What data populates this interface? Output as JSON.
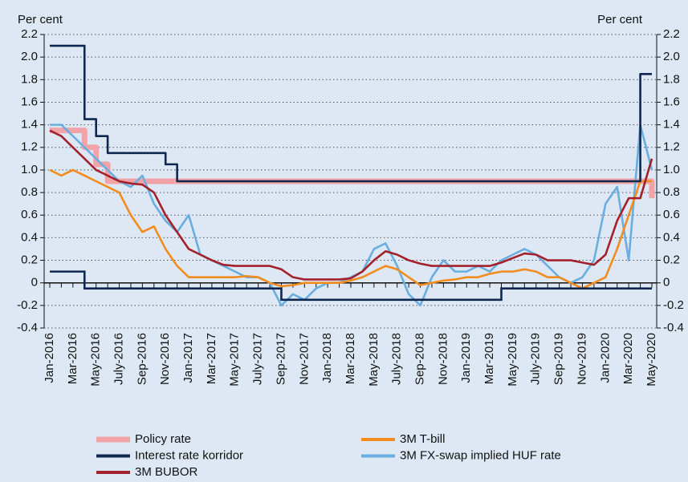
{
  "chart_data": {
    "type": "line",
    "ylabel": "Per cent",
    "y2label": "Per cent",
    "categories": [
      "Jan-2016",
      null,
      "Mar-2016",
      null,
      "May-2016",
      null,
      "July-2016",
      null,
      "Sep-2016",
      null,
      "Nov-2016",
      null,
      "Jan-2017",
      null,
      "Mar-2017",
      null,
      "May-2017",
      null,
      "July-2017",
      null,
      "Sep-2017",
      null,
      "Nov-2017",
      null,
      "Jan-2018",
      null,
      "Mar-2018",
      null,
      "May-2018",
      null,
      "July-2018",
      null,
      "Sep-2018",
      null,
      "Nov-2018",
      null,
      "Jan-2019",
      null,
      "Mar-2019",
      null,
      "May-2019",
      null,
      "July-2019",
      null,
      "Sep-2019",
      null,
      "Nov-2019",
      null,
      "Jan-2020",
      null,
      "Mar-2020",
      null,
      "May-2020"
    ],
    "ylim": [
      -0.4,
      2.2
    ],
    "yticks": [
      -0.4,
      -0.2,
      0,
      0.2,
      0.4,
      0.6,
      0.8,
      {
        "value": 1,
        "label": "1.0"
      },
      1.2,
      1.4,
      1.6,
      1.8,
      {
        "value": 2,
        "label": "2.0"
      },
      2.2
    ],
    "y2lim": [
      -0.4,
      2.2
    ],
    "y2ticks": [
      -0.4,
      -0.2,
      0,
      0.2,
      0.4,
      0.6,
      0.8,
      {
        "value": 1,
        "label": "1.0"
      },
      1.2,
      1.4,
      1.6,
      1.8,
      {
        "value": 2,
        "label": "2.0"
      },
      2.2
    ],
    "grid": true,
    "series": [
      {
        "name": "Policy rate",
        "color": "#f2a3a8",
        "values": [
          1.35,
          1.35,
          1.35,
          1.2,
          1.05,
          0.9,
          0.9,
          0.9,
          0.9,
          0.9,
          0.9,
          0.9,
          0.9,
          0.9,
          0.9,
          0.9,
          0.9,
          0.9,
          0.9,
          0.9,
          0.9,
          0.9,
          0.9,
          0.9,
          0.9,
          0.9,
          0.9,
          0.9,
          0.9,
          0.9,
          0.9,
          0.9,
          0.9,
          0.9,
          0.9,
          0.9,
          0.9,
          0.9,
          0.9,
          0.9,
          0.9,
          0.9,
          0.9,
          0.9,
          0.9,
          0.9,
          0.9,
          0.9,
          0.9,
          0.9,
          0.9,
          0.9,
          0.75
        ]
      },
      {
        "name": "Interest rate korridor",
        "color": "#0f2750",
        "values": [
          2.1,
          2.1,
          2.1,
          1.45,
          1.3,
          1.15,
          1.15,
          1.15,
          1.15,
          1.15,
          1.05,
          0.9,
          0.9,
          0.9,
          0.9,
          0.9,
          0.9,
          0.9,
          0.9,
          0.9,
          0.9,
          0.9,
          0.9,
          0.9,
          0.9,
          0.9,
          0.9,
          0.9,
          0.9,
          0.9,
          0.9,
          0.9,
          0.9,
          0.9,
          0.9,
          0.9,
          0.9,
          0.9,
          0.9,
          0.9,
          0.9,
          0.9,
          0.9,
          0.9,
          0.9,
          0.9,
          0.9,
          0.9,
          0.9,
          0.9,
          0.9,
          1.85,
          1.85
        ],
        "lower": [
          0.1,
          0.1,
          0.1,
          -0.05,
          -0.05,
          -0.05,
          -0.05,
          -0.05,
          -0.05,
          -0.05,
          -0.05,
          -0.05,
          -0.05,
          -0.05,
          -0.05,
          -0.05,
          -0.05,
          -0.05,
          -0.05,
          -0.05,
          -0.15,
          -0.15,
          -0.15,
          -0.15,
          -0.15,
          -0.15,
          -0.15,
          -0.15,
          -0.15,
          -0.15,
          -0.15,
          -0.15,
          -0.15,
          -0.15,
          -0.15,
          -0.15,
          -0.15,
          -0.15,
          -0.15,
          -0.05,
          -0.05,
          -0.05,
          -0.05,
          -0.05,
          -0.05,
          -0.05,
          -0.05,
          -0.05,
          -0.05,
          -0.05,
          -0.05,
          -0.05,
          -0.05
        ]
      },
      {
        "name": "3M BUBOR",
        "color": "#a3212b",
        "values": [
          1.35,
          1.3,
          1.2,
          1.1,
          1.0,
          0.95,
          0.9,
          0.88,
          0.87,
          0.8,
          0.6,
          0.45,
          0.3,
          0.25,
          0.2,
          0.16,
          0.15,
          0.15,
          0.15,
          0.15,
          0.12,
          0.05,
          0.03,
          0.03,
          0.03,
          0.03,
          0.04,
          0.1,
          0.2,
          0.28,
          0.25,
          0.2,
          0.17,
          0.15,
          0.15,
          0.15,
          0.15,
          0.15,
          0.15,
          0.18,
          0.22,
          0.26,
          0.25,
          0.2,
          0.2,
          0.2,
          0.18,
          0.16,
          0.25,
          0.55,
          0.75,
          0.75,
          1.1
        ]
      },
      {
        "name": "3M T-bill",
        "color": "#f28c1f",
        "values": [
          1.0,
          0.95,
          1.0,
          0.95,
          0.9,
          0.85,
          0.8,
          0.6,
          0.45,
          0.5,
          0.3,
          0.15,
          0.05,
          0.05,
          0.05,
          0.05,
          0.05,
          0.06,
          0.05,
          0,
          -0.03,
          -0.02,
          0,
          0,
          0,
          0,
          0.02,
          0.05,
          0.1,
          0.15,
          0.12,
          0.05,
          -0.02,
          0,
          0.02,
          0.03,
          0.05,
          0.05,
          0.08,
          0.1,
          0.1,
          0.12,
          0.1,
          0.05,
          0.05,
          0,
          -0.05,
          0,
          0.05,
          0.3,
          0.6,
          0.9,
          0.9
        ]
      },
      {
        "name": "3M FX-swap implied HUF rate",
        "color": "#6aaee0",
        "values": [
          1.4,
          1.4,
          1.3,
          1.2,
          1.1,
          1.0,
          0.9,
          0.85,
          0.95,
          0.7,
          0.55,
          0.45,
          0.6,
          0.25,
          0.2,
          0.15,
          0.1,
          0.05,
          0.05,
          0,
          -0.2,
          -0.1,
          -0.15,
          -0.05,
          0,
          0,
          0.05,
          0.1,
          0.3,
          0.35,
          0.15,
          -0.1,
          -0.2,
          0.05,
          0.2,
          0.1,
          0.1,
          0.15,
          0.1,
          0.2,
          0.25,
          0.3,
          0.25,
          0.15,
          0.05,
          0,
          0.05,
          0.2,
          0.7,
          0.85,
          0.2,
          1.4,
          1.0
        ]
      }
    ]
  }
}
